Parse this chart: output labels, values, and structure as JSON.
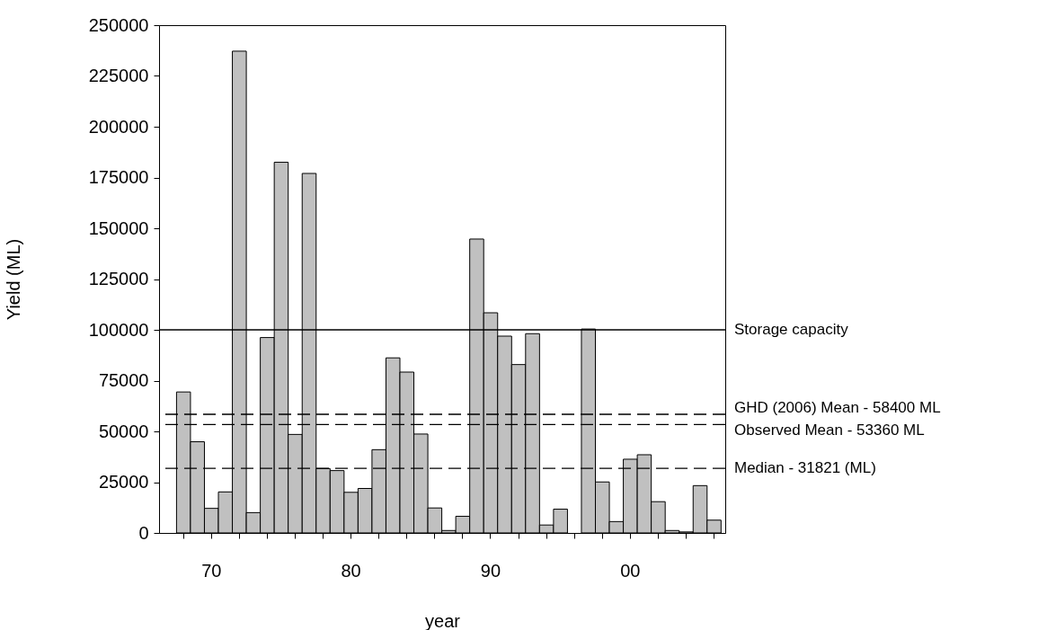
{
  "chart_data": {
    "type": "bar",
    "xlabel": "year",
    "ylabel": "Yield (ML)",
    "categories": [
      null,
      null,
      "70",
      null,
      null,
      null,
      null,
      null,
      null,
      null,
      null,
      null,
      "80",
      null,
      null,
      null,
      null,
      null,
      null,
      null,
      null,
      null,
      "90",
      null,
      null,
      null,
      null,
      null,
      null,
      null,
      null,
      null,
      "00",
      null,
      null,
      null,
      null,
      null,
      null
    ],
    "values": [
      69400,
      44900,
      12100,
      20200,
      237200,
      10000,
      96200,
      182500,
      48500,
      177000,
      31700,
      30700,
      20000,
      21900,
      41000,
      86200,
      79200,
      48700,
      12300,
      1200,
      8200,
      144700,
      108400,
      96900,
      82900,
      98100,
      3900,
      11700,
      null,
      100400,
      25100,
      5600,
      36300,
      38500,
      15400,
      1200,
      500,
      23300,
      6300
    ],
    "color": "#c0c0c0",
    "ylim": [
      0,
      250000
    ],
    "yticks": [
      0,
      25000,
      50000,
      75000,
      100000,
      125000,
      150000,
      175000,
      200000,
      225000,
      250000
    ],
    "ref_lines": [
      {
        "axis": "y",
        "value": 100000,
        "label": "Storage capacity",
        "line_style": "solid"
      },
      {
        "axis": "y",
        "value": 58400,
        "label": "GHD (2006) Mean - 58400 ML",
        "line_style": "dashed"
      },
      {
        "axis": "y",
        "value": 53360,
        "label": "Observed Mean - 53360 ML",
        "line_style": "dashed"
      },
      {
        "axis": "y",
        "value": 31821,
        "label": "Median - 31821 (ML)",
        "line_style": "dashed"
      }
    ]
  }
}
